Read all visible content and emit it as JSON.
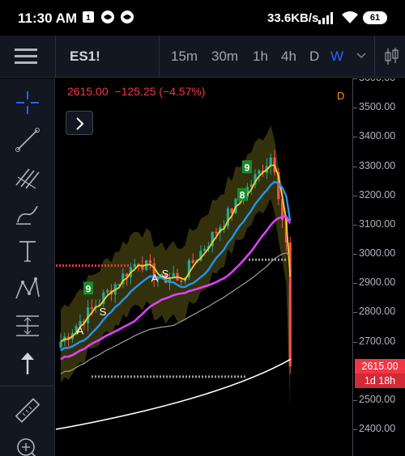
{
  "status_bar": {
    "time": "11:30 AM",
    "network_speed": "33.6KB/s",
    "battery": "61"
  },
  "toolbar": {
    "symbol": "ES1!",
    "timeframes": [
      {
        "label": "15m",
        "active": false
      },
      {
        "label": "30m",
        "active": false
      },
      {
        "label": "1h",
        "active": false
      },
      {
        "label": "4h",
        "active": false
      },
      {
        "label": "D",
        "active": false
      },
      {
        "label": "W",
        "active": true
      }
    ]
  },
  "sidebar": {
    "tools": [
      "crosshair-icon",
      "trend-line-icon",
      "fib-tool-icon",
      "brush-icon",
      "text-tool-icon",
      "pattern-tool-icon",
      "measure-tool-icon",
      "arrow-up-icon",
      "ruler-icon",
      "zoom-in-icon"
    ]
  },
  "chart": {
    "header": {
      "price": "2615.00",
      "change": "−125.25 (−4.57%)"
    },
    "d_label": "D",
    "price_tag": "2615.00",
    "time_tag": "1d 18h",
    "accent_red": "#f23645",
    "accent_blue": "#2962ff",
    "markers": [
      "9",
      "8",
      "9",
      "A",
      "S",
      "A",
      "S"
    ]
  },
  "chart_data": {
    "type": "candlestick",
    "y_ticks": [
      "3600.00",
      "3500.00",
      "3400.00",
      "3300.00",
      "3200.00",
      "3100.00",
      "3000.00",
      "2900.00",
      "2800.00",
      "2700.00",
      "2500.00",
      "2400.00"
    ],
    "ylim": [
      2350,
      3610
    ],
    "last_price": 2615,
    "overlays": [
      "yellow moving average",
      "blue moving average",
      "magenta moving average",
      "gray moving average",
      "white moving average",
      "bollinger band (olive fill)"
    ]
  }
}
